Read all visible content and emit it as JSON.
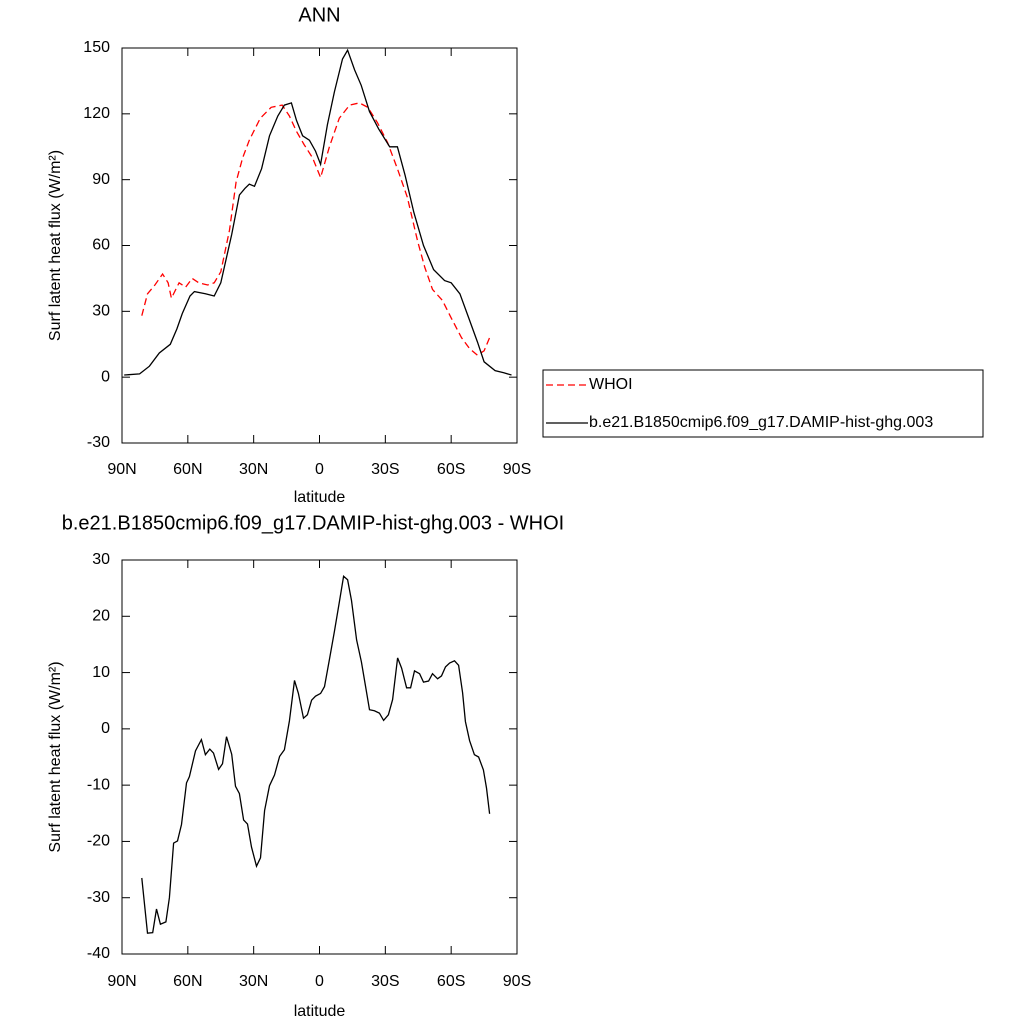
{
  "chart_data": [
    {
      "type": "line",
      "title": "ANN",
      "ylabel": "Surf latent heat flux (W/m²)",
      "xlabel": "latitude",
      "xlim": [
        90,
        -90
      ],
      "xticks": [
        {
          "value": 90,
          "label": "90N"
        },
        {
          "value": 60,
          "label": "60N"
        },
        {
          "value": 30,
          "label": "30N"
        },
        0,
        {
          "value": -30,
          "label": "30S"
        },
        {
          "value": -60,
          "label": "60S"
        },
        {
          "value": -90,
          "label": "90S"
        }
      ],
      "ylim": [
        -30,
        150
      ],
      "yticks": [
        -30,
        0,
        30,
        60,
        90,
        120,
        150
      ],
      "legend": "right",
      "series": [
        {
          "name": "WHOI",
          "color": "#ff0000",
          "dash": true,
          "x": [
            81,
            78.4,
            75,
            71.5,
            69,
            67.5,
            64,
            61,
            58,
            55,
            51,
            48,
            45,
            41,
            38,
            35,
            32,
            27,
            22,
            17,
            13.7,
            10.5,
            7,
            3.2,
            -0.5,
            -4.5,
            -9,
            -13.7,
            -18.2,
            -22,
            -26.4,
            -31,
            -35.5,
            -40,
            -44.7,
            -48,
            -51.5,
            -56,
            -60,
            -64.7,
            -68.4,
            -72,
            -75,
            -77.5
          ],
          "values": [
            28,
            38,
            42,
            47,
            43,
            36,
            43,
            41,
            45,
            43,
            42,
            43,
            48,
            67,
            89,
            100,
            108,
            118,
            123,
            124,
            119,
            112,
            106,
            100,
            91,
            105,
            118,
            124,
            125,
            123,
            116,
            107,
            95,
            82,
            62,
            50,
            40,
            35,
            27,
            18,
            13,
            10,
            12,
            18
          ]
        },
        {
          "name": "b.e21.B1850cmip6.f09_g17.DAMIP-hist-ghg.003",
          "color": "#000000",
          "dash": false,
          "x": [
            89,
            82,
            77.5,
            73,
            68,
            65,
            62.5,
            59,
            57,
            52,
            48,
            45,
            40,
            36.5,
            34,
            32,
            29.6,
            26.4,
            22.8,
            19,
            16,
            12.8,
            10.5,
            7.7,
            4.6,
            1.8,
            -0.5,
            -3.6,
            -6.8,
            -10.5,
            -12.8,
            -16,
            -19,
            -22.8,
            -27,
            -32,
            -35.5,
            -39,
            -43,
            -47.4,
            -52,
            -57,
            -60,
            -64,
            -68,
            -72,
            -75,
            -80,
            -84,
            -87.5
          ],
          "values": [
            1,
            1.5,
            5,
            11,
            15,
            22,
            29,
            37,
            39,
            38,
            37,
            43,
            65,
            83,
            86,
            88,
            87,
            95,
            110,
            119,
            124,
            125,
            117,
            110,
            108,
            103,
            97,
            115,
            130,
            145,
            149,
            140,
            133,
            121,
            113,
            105,
            105,
            92,
            75,
            60,
            49,
            44,
            43,
            38,
            27,
            16,
            7,
            3,
            2,
            1
          ]
        }
      ]
    },
    {
      "type": "line",
      "title": "b.e21.B1850cmip6.f09_g17.DAMIP-hist-ghg.003 - WHOI",
      "ylabel": "Surf latent heat flux (W/m²)",
      "xlabel": "latitude",
      "xlim": [
        90,
        -90
      ],
      "xticks": [
        {
          "value": 90,
          "label": "90N"
        },
        {
          "value": 60,
          "label": "60N"
        },
        {
          "value": 30,
          "label": "30N"
        },
        0,
        {
          "value": -30,
          "label": "30S"
        },
        {
          "value": -60,
          "label": "60S"
        },
        {
          "value": -90,
          "label": "90S"
        }
      ],
      "ylim": [
        -40,
        30
      ],
      "yticks": [
        -40,
        -30,
        -20,
        -10,
        0,
        10,
        20,
        30
      ],
      "color": "#000000",
      "x": [
        81,
        78.4,
        76,
        74.3,
        72.5,
        70,
        68.4,
        66.5,
        64.7,
        62.9,
        60.6,
        59.3,
        56.5,
        53.8,
        52,
        50,
        48.3,
        46,
        44.2,
        42.4,
        40,
        38.3,
        36.5,
        34.6,
        32.8,
        31,
        28.7,
        26.9,
        25,
        22.8,
        20.5,
        18.2,
        16,
        13.7,
        11.4,
        9.6,
        7.3,
        5.5,
        3.6,
        1.8,
        -0.5,
        -2.3,
        -4.6,
        -6.8,
        -9.1,
        -11,
        -12.8,
        -14.6,
        -16.9,
        -19.1,
        -21,
        -22.8,
        -25,
        -27.3,
        -29.2,
        -31.4,
        -33.3,
        -35.6,
        -37.4,
        -39.7,
        -41.5,
        -43.3,
        -45.6,
        -47.4,
        -49.7,
        -51.5,
        -53.8,
        -55.6,
        -57.4,
        -59.3,
        -61.5,
        -63.4,
        -65.2,
        -66.5,
        -68.4,
        -70.6,
        -72.5,
        -74.7,
        -76.1,
        -77.5
      ],
      "values": [
        -26.5,
        -36.3,
        -36.2,
        -32,
        -34.7,
        -34.3,
        -30,
        -20.3,
        -19.9,
        -17,
        -9.6,
        -8.5,
        -3.9,
        -1.9,
        -4.6,
        -3.6,
        -4.3,
        -7.2,
        -6.2,
        -1.4,
        -4.5,
        -10.2,
        -11.5,
        -16.2,
        -16.9,
        -21,
        -24.4,
        -22.9,
        -14.5,
        -10.1,
        -8.2,
        -4.9,
        -3.7,
        1.4,
        8.6,
        6.3,
        1.9,
        2.5,
        5.1,
        5.8,
        6.3,
        7.5,
        12.5,
        17.3,
        22.7,
        27.1,
        26.5,
        22.8,
        15.8,
        11.9,
        7.5,
        3.4,
        3.2,
        2.8,
        1.5,
        2.5,
        5.2,
        12.6,
        10.8,
        7.3,
        7.3,
        10.3,
        9.8,
        8.3,
        8.5,
        9.8,
        8.9,
        9.4,
        11,
        11.7,
        12.1,
        11.3,
        6.4,
        1.3,
        -2.1,
        -4.6,
        -5,
        -7.3,
        -10.5,
        -15.1
      ]
    }
  ]
}
